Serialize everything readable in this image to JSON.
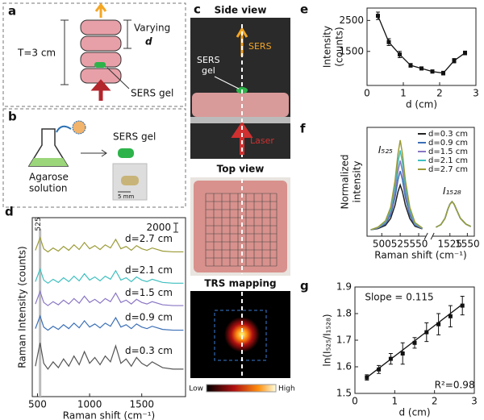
{
  "panel_labels": [
    "a",
    "b",
    "c",
    "d",
    "e",
    "f",
    "g"
  ],
  "diagrams": {
    "a": {
      "thickness": "T=3 cm",
      "varying": "Varying",
      "d": "d",
      "gel": "SERS gel"
    },
    "b": {
      "gel": "SERS gel",
      "agarose": "Agarose",
      "solution": "solution",
      "scale": "5 mm"
    },
    "c": {
      "side_view": "Side view",
      "sers": "SERS",
      "gel_1": "SERS",
      "gel_2": "gel",
      "laser": "Laser",
      "top_view": "Top view",
      "mapping": "TRS mapping",
      "low": "Low",
      "high": "High"
    }
  },
  "chart_data": [
    {
      "type": "line",
      "xlabel": "Raman shift (cm⁻¹)",
      "ylabel": "Raman Intensity (counts)",
      "xlim": [
        450,
        1920
      ],
      "xticks": [
        500,
        1000,
        1500
      ],
      "ylim": [
        0,
        40000
      ],
      "marker": 525,
      "scale_bar": 2000,
      "x": [
        480,
        525,
        560,
        600,
        650,
        700,
        750,
        800,
        850,
        900,
        950,
        1000,
        1050,
        1100,
        1150,
        1200,
        1250,
        1300,
        1350,
        1400,
        1450,
        1500,
        1550,
        1600,
        1700,
        1800,
        1900
      ],
      "series": [
        {
          "name": "d=0.3 cm",
          "color": "#555555",
          "values": [
            6800,
            12000,
            7450,
            6150,
            7775,
            6475,
            8425,
            6800,
            9075,
            7125,
            10050,
            7450,
            8750,
            7125,
            9075,
            7775,
            11350,
            7450,
            8425,
            6800,
            8750,
            7450,
            6800,
            7775,
            6475,
            6150,
            6150
          ]
        },
        {
          "name": "d=0.9 cm",
          "color": "#3b6fb6",
          "values": [
            15200,
            18000,
            15550,
            14850,
            15725,
            15025,
            16075,
            15200,
            16425,
            15375,
            16950,
            15550,
            16250,
            15375,
            16425,
            15725,
            17650,
            15550,
            16075,
            15200,
            16250,
            15550,
            15200,
            15725,
            15025,
            14850,
            14850
          ]
        },
        {
          "name": "d=1.5 cm",
          "color": "#8a76c4",
          "values": [
            20700,
            23500,
            21050,
            20350,
            21225,
            20525,
            21575,
            20700,
            21925,
            20875,
            22450,
            21050,
            21750,
            20875,
            21925,
            21225,
            23150,
            21050,
            21575,
            20700,
            21750,
            21050,
            20700,
            21225,
            20525,
            20350,
            20350
          ]
        },
        {
          "name": "d=2.1 cm",
          "color": "#3fbfbf",
          "values": [
            25700,
            28500,
            26050,
            25350,
            26225,
            25525,
            26575,
            25700,
            26925,
            25875,
            27450,
            26050,
            26750,
            25875,
            26925,
            26225,
            28150,
            26050,
            26575,
            25700,
            26750,
            26050,
            25700,
            26225,
            25525,
            25350,
            25350
          ]
        },
        {
          "name": "d=2.7 cm",
          "color": "#9b9b38",
          "values": [
            32700,
            35500,
            33050,
            32350,
            33225,
            32525,
            33575,
            32700,
            33925,
            32875,
            34450,
            33050,
            33750,
            32875,
            33925,
            33225,
            35150,
            33050,
            33575,
            32700,
            33750,
            33050,
            32700,
            33225,
            32525,
            32350,
            32350
          ]
        }
      ]
    },
    {
      "type": "errorline",
      "xlabel": "d (cm)",
      "ylabel": [
        "Intensity",
        "(counts)"
      ],
      "xlim": [
        0,
        3
      ],
      "xticks": [
        0,
        1,
        2,
        3
      ],
      "ylim": [
        400,
        2900
      ],
      "yticks": [
        1500,
        2500
      ],
      "color": "#111111",
      "x": [
        0.3,
        0.6,
        0.9,
        1.2,
        1.5,
        1.8,
        2.1,
        2.4,
        2.7
      ],
      "values": [
        2650,
        1800,
        1400,
        1050,
        950,
        850,
        800,
        1200,
        1450
      ],
      "errors": [
        120,
        110,
        100,
        60,
        50,
        50,
        60,
        70,
        60
      ]
    },
    {
      "type": "line",
      "xlabel": "Raman shift (cm⁻¹)",
      "ylabel": [
        "Normalized",
        "intensity"
      ],
      "xlim_segments": [
        [
          480,
          560
        ],
        [
          1500,
          1560
        ]
      ],
      "xticks": [
        500,
        525,
        550,
        1525,
        1550
      ],
      "ylim": [
        0.15,
        1.0
      ],
      "annotations": [
        {
          "text": "I₅₂₅",
          "x": 505,
          "y": 0.82
        },
        {
          "text": "I₁₅₂₈",
          "x": 1528,
          "y": 0.5
        }
      ],
      "x": [
        485,
        495,
        505,
        512,
        518,
        522,
        525,
        528,
        532,
        538,
        545,
        555,
        1505,
        1512,
        1518,
        1522,
        1525,
        1528,
        1531,
        1535,
        1540,
        1548,
        1555
      ],
      "series": [
        {
          "name": "d=0.3 cm",
          "color": "#222222",
          "values": [
            0.2,
            0.21,
            0.235,
            0.288,
            0.393,
            0.498,
            0.55,
            0.498,
            0.393,
            0.288,
            0.228,
            0.207,
            0.22,
            0.24,
            0.29,
            0.36,
            0.4,
            0.42,
            0.4,
            0.35,
            0.29,
            0.244,
            0.226
          ]
        },
        {
          "name": "d=0.9 cm",
          "color": "#3b6fb6",
          "values": [
            0.2,
            0.214,
            0.246,
            0.315,
            0.453,
            0.591,
            0.66,
            0.591,
            0.453,
            0.315,
            0.237,
            0.209,
            0.22,
            0.24,
            0.29,
            0.36,
            0.4,
            0.42,
            0.4,
            0.35,
            0.29,
            0.244,
            0.226
          ]
        },
        {
          "name": "d=1.5 cm",
          "color": "#8a76c4",
          "values": [
            0.2,
            0.216,
            0.254,
            0.335,
            0.497,
            0.659,
            0.74,
            0.659,
            0.497,
            0.335,
            0.243,
            0.211,
            0.22,
            0.24,
            0.29,
            0.36,
            0.4,
            0.42,
            0.4,
            0.35,
            0.29,
            0.244,
            0.226
          ]
        },
        {
          "name": "d=2.1 cm",
          "color": "#3fbfbf",
          "values": [
            0.2,
            0.219,
            0.262,
            0.355,
            0.541,
            0.727,
            0.82,
            0.727,
            0.541,
            0.355,
            0.25,
            0.212,
            0.22,
            0.24,
            0.29,
            0.36,
            0.4,
            0.42,
            0.4,
            0.35,
            0.29,
            0.244,
            0.226
          ]
        },
        {
          "name": "d=2.7 cm",
          "color": "#9b9b38",
          "values": [
            0.2,
            0.221,
            0.27,
            0.375,
            0.585,
            0.795,
            0.9,
            0.795,
            0.585,
            0.375,
            0.256,
            0.214,
            0.22,
            0.24,
            0.29,
            0.36,
            0.4,
            0.42,
            0.4,
            0.35,
            0.29,
            0.244,
            0.226
          ]
        }
      ]
    },
    {
      "type": "errorfit",
      "xlabel": "d (cm)",
      "ylabel": "ln(I₅₂₅/I₁₅₂₈)",
      "xlim": [
        0,
        3
      ],
      "xticks": [
        0,
        1,
        2,
        3
      ],
      "ylim": [
        1.5,
        1.9
      ],
      "yticks": [
        1.5,
        1.6,
        1.7,
        1.8,
        1.9
      ],
      "color": "#111111",
      "annotations": [
        {
          "text": "Slope = 0.115",
          "x": 0.25,
          "y": 1.86
        },
        {
          "text": "R²=0.98",
          "x": 2.0,
          "y": 1.53
        }
      ],
      "x": [
        0.3,
        0.6,
        0.9,
        1.2,
        1.5,
        1.8,
        2.1,
        2.4,
        2.7
      ],
      "values": [
        1.56,
        1.59,
        1.63,
        1.65,
        1.69,
        1.73,
        1.76,
        1.79,
        1.83
      ],
      "errors": [
        0.01,
        0.015,
        0.02,
        0.04,
        0.02,
        0.035,
        0.04,
        0.04,
        0.035
      ],
      "fit": {
        "x": [
          0.3,
          2.7
        ],
        "values": [
          1.56,
          1.835
        ]
      }
    }
  ]
}
